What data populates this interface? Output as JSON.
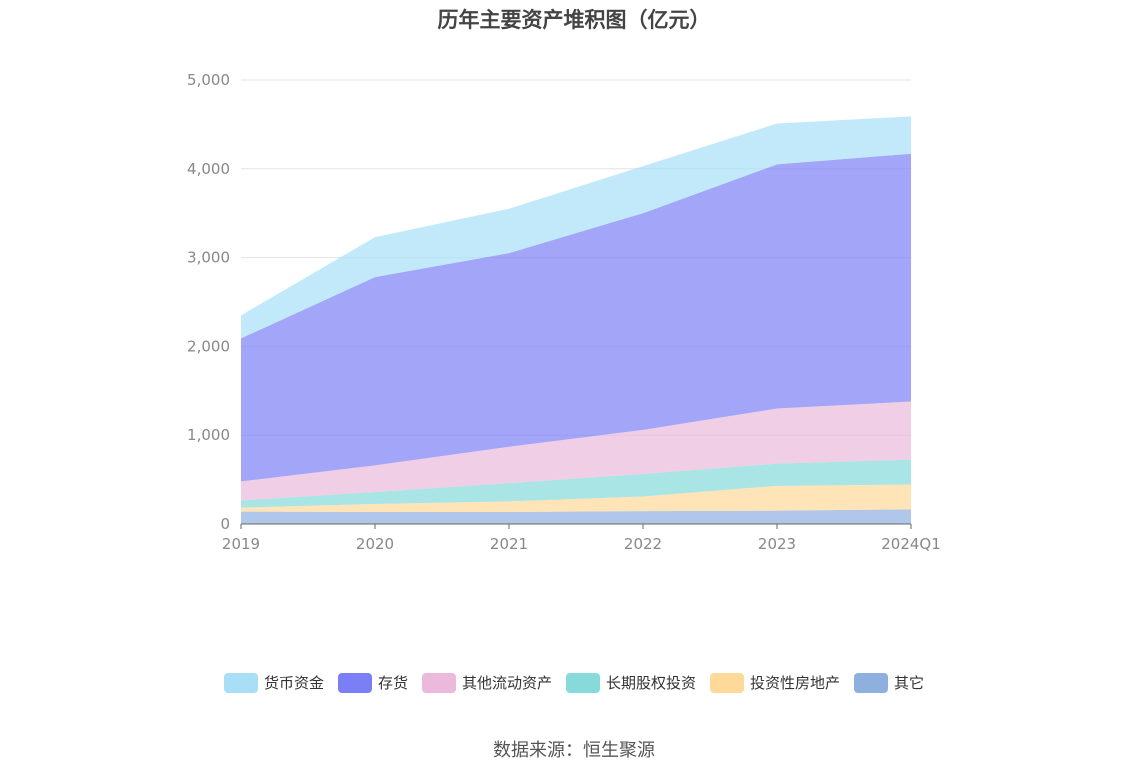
{
  "title": "历年主要资产堆积图（亿元）",
  "source": "数据来源：恒生聚源",
  "chart_data": {
    "type": "area",
    "stacked": true,
    "categories": [
      "2019",
      "2020",
      "2021",
      "2022",
      "2023",
      "2024Q1"
    ],
    "ylim": [
      0,
      5000
    ],
    "yticks": [
      "0",
      "1,000",
      "2,000",
      "3,000",
      "4,000",
      "5,000"
    ],
    "grid": true,
    "legend_position": "bottom",
    "series": [
      {
        "name": "其它",
        "color": "#8fafdf",
        "values": [
          140,
          135,
          135,
          145,
          150,
          165
        ]
      },
      {
        "name": "投资性房地产",
        "color": "#ffd99a",
        "values": [
          45,
          90,
          120,
          165,
          280,
          280
        ]
      },
      {
        "name": "长期股权投资",
        "color": "#86dada",
        "values": [
          80,
          135,
          205,
          255,
          250,
          280
        ]
      },
      {
        "name": "其他流动资产",
        "color": "#eab9dc",
        "values": [
          215,
          300,
          410,
          495,
          620,
          655
        ]
      },
      {
        "name": "存货",
        "color": "#7b7ff5",
        "values": [
          1610,
          2120,
          2180,
          2440,
          2750,
          2790
        ]
      },
      {
        "name": "货币资金",
        "color": "#a8dff7",
        "values": [
          260,
          450,
          500,
          530,
          460,
          420
        ]
      }
    ],
    "legend_order": [
      "货币资金",
      "存货",
      "其他流动资产",
      "长期股权投资",
      "投资性房地产",
      "其它"
    ]
  }
}
